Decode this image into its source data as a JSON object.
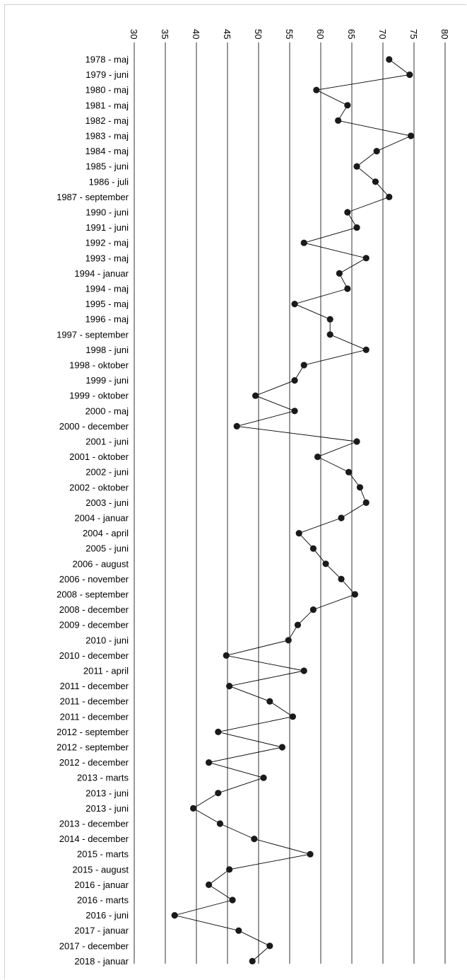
{
  "chart_data": {
    "type": "line",
    "orientation": "horizontal",
    "title": "",
    "xlabel": "",
    "ylabel": "",
    "xlim": [
      30,
      80
    ],
    "xticks": [
      "30",
      "35",
      "40",
      "45",
      "50",
      "55",
      "60",
      "65",
      "70",
      "75",
      "80"
    ],
    "grid": "vertical",
    "legend": "none",
    "colors": {
      "line": "#000000",
      "marker": "#1a1a1a",
      "grid": "#000000"
    },
    "categories": [
      "1978 - maj",
      "1979 - juni",
      "1980 - maj",
      "1981 - maj",
      "1982 - maj",
      "1983 - maj",
      "1984 - maj",
      "1985 - juni",
      "1986 - juli",
      "1987 - september",
      "1990 - juni",
      "1991 - juni",
      "1992 - maj",
      "1993 - maj",
      "1994 - januar",
      "1994 - maj",
      "1995 - maj",
      "1996 - maj",
      "1997 - september",
      "1998 - juni",
      "1998 - oktober",
      "1999 - juni",
      "1999 - oktober",
      "2000 - maj",
      "2000 - december",
      "2001 - juni",
      "2001 - oktober",
      "2002 - juni",
      "2002 - oktober",
      "2003 - juni",
      "2004 - januar",
      "2004 - april",
      "2005 - juni",
      "2006 - august",
      "2006 - november",
      "2008 - september",
      "2008 - december",
      "2009 - december",
      "2010 - juni",
      "2010 - december",
      "2011 - april",
      "2011 - december",
      "2011 - december",
      "2011 - december",
      "2012 - september",
      "2012 - september",
      "2012 - december",
      "2013 - marts",
      "2013 - juni",
      "2013 - juni",
      "2013 - december",
      "2014 - december",
      "2015 - marts",
      "2015 - august",
      "2016 - januar",
      "2016 - marts",
      "2016 - juni",
      "2017 - januar",
      "2017 - december",
      "2018 - januar"
    ],
    "values": [
      71.0,
      74.3,
      59.3,
      64.3,
      62.8,
      74.5,
      69.0,
      65.8,
      68.8,
      71.0,
      64.3,
      65.8,
      57.3,
      67.3,
      63.0,
      64.3,
      55.8,
      61.5,
      61.5,
      67.3,
      57.3,
      55.8,
      49.5,
      55.8,
      46.5,
      65.8,
      59.5,
      64.5,
      66.3,
      67.3,
      63.3,
      56.5,
      58.8,
      60.8,
      63.3,
      65.5,
      58.8,
      56.3,
      54.8,
      44.8,
      57.3,
      45.3,
      51.8,
      55.5,
      43.5,
      53.8,
      42.0,
      50.8,
      43.5,
      39.5,
      43.8,
      49.3,
      58.3,
      45.3,
      42.0,
      45.8,
      36.5,
      46.8,
      51.8,
      49.0
    ]
  }
}
